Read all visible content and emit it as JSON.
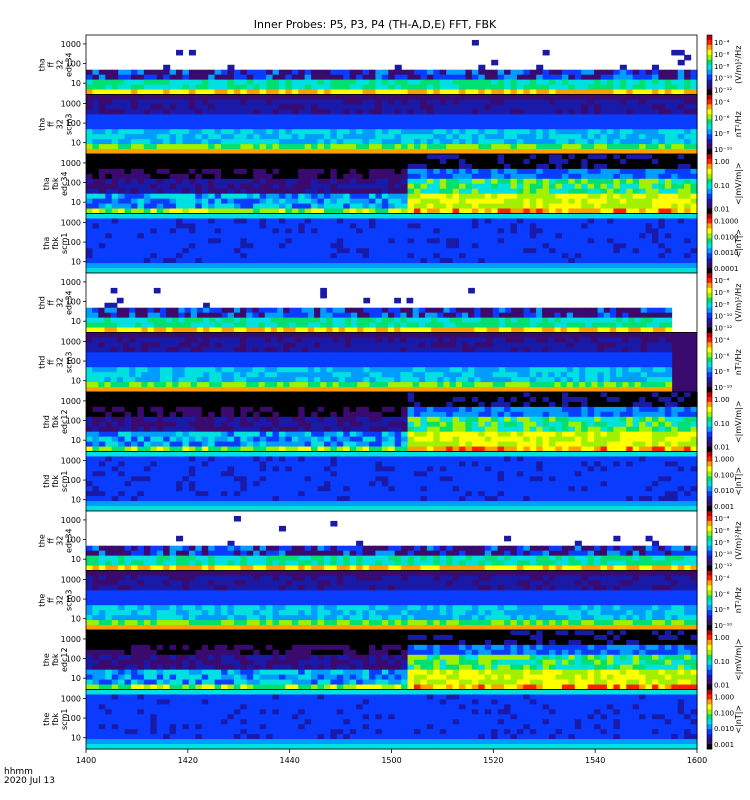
{
  "title": "Inner Probes: P5, P3, P4 (TH-A,D,E) FFT, FBK",
  "time_label": "hhmm",
  "date_label": "2020 Jul 13",
  "colors": {
    "palette": [
      "#000000",
      "#3a0a6e",
      "#1a1aa8",
      "#0a3cff",
      "#009cff",
      "#00e0e0",
      "#00e070",
      "#a0f000",
      "#ffff00",
      "#ffa000",
      "#ff2000",
      "#c00000"
    ]
  },
  "chart_data": {
    "type": "heatmap",
    "xlim": [
      1400,
      1600
    ],
    "x_ticks": [
      "1400",
      "1420",
      "1440",
      "1500",
      "1520",
      "1540",
      "1600"
    ],
    "y_ticks": [
      "1000",
      "100",
      "10"
    ],
    "panels": [
      {
        "id": "tha-ff32-edc34",
        "label": [
          "tha",
          "ff",
          "32",
          "edc34"
        ],
        "kind": "efield_spec",
        "cb_title": "(V/m)²/Hz",
        "cb_ticks": [
          "10⁻⁴",
          "10⁻⁶",
          "10⁻⁸",
          "10⁻¹⁰",
          "10⁻¹²"
        ]
      },
      {
        "id": "tha-ff32-scm3",
        "label": [
          "tha",
          "ff",
          "32",
          "scm3"
        ],
        "kind": "bfield_spec",
        "cb_title": "nT²/Hz",
        "cb_ticks": [
          "10⁻⁴",
          "10⁻⁶",
          "10⁻⁸",
          "10⁻¹⁰"
        ]
      },
      {
        "id": "tha-fbk-edc34",
        "label": [
          "tha",
          "fbk",
          "edc34"
        ],
        "kind": "efbk",
        "cb_title": "<|mV/m|>",
        "cb_ticks": [
          "1.00",
          "0.10",
          "0.01"
        ]
      },
      {
        "id": "tha-fbk-scm1",
        "label": [
          "tha",
          "fbk",
          "scm1"
        ],
        "kind": "bfbk",
        "cb_title": "<|nT|>",
        "cb_ticks": [
          "0.1000",
          "0.0100",
          "0.0010",
          "0.0001"
        ]
      },
      {
        "id": "thd-ff32-edc34",
        "label": [
          "thd",
          "ff",
          "32",
          "edc34"
        ],
        "kind": "efield_spec",
        "cb_title": "(V/m)²/Hz",
        "cb_ticks": [
          "10⁻⁴",
          "10⁻⁶",
          "10⁻⁸",
          "10⁻¹⁰",
          "10⁻¹²"
        ],
        "data_end": 1555
      },
      {
        "id": "thd-ff32-scm3",
        "label": [
          "thd",
          "ff",
          "32",
          "scm3"
        ],
        "kind": "bfield_spec",
        "cb_title": "nT²/Hz",
        "cb_ticks": [
          "10⁻⁴",
          "10⁻⁶",
          "10⁻⁸",
          "10⁻¹⁰"
        ],
        "data_end": 1555
      },
      {
        "id": "thd-fbk-edc12",
        "label": [
          "thd",
          "fbk",
          "edc12"
        ],
        "kind": "efbk",
        "cb_title": "<|mV/m|>",
        "cb_ticks": [
          "1.00",
          "0.10",
          "0.01"
        ]
      },
      {
        "id": "thd-fbk-scm1",
        "label": [
          "thd",
          "fbk",
          "scm1"
        ],
        "kind": "bfbk",
        "cb_title": "<|nT|>",
        "cb_ticks": [
          "1.000",
          "0.100",
          "0.010",
          "0.001"
        ]
      },
      {
        "id": "the-ff32-edc34",
        "label": [
          "the",
          "ff",
          "32",
          "edc34"
        ],
        "kind": "efield_spec",
        "cb_title": "(V/m)²/Hz",
        "cb_ticks": [
          "10⁻⁴",
          "10⁻⁶",
          "10⁻⁸",
          "10⁻¹⁰",
          "10⁻¹²"
        ]
      },
      {
        "id": "the-ff32-scm3",
        "label": [
          "the",
          "ff",
          "32",
          "scm3"
        ],
        "kind": "bfield_spec",
        "cb_title": "nT²/Hz",
        "cb_ticks": [
          "10⁻⁴",
          "10⁻⁶",
          "10⁻⁸",
          "10⁻¹⁰"
        ]
      },
      {
        "id": "the-fbk-edc12",
        "label": [
          "the",
          "fbk",
          "edc12"
        ],
        "kind": "efbk",
        "cb_title": "<|mV/m|>",
        "cb_ticks": [
          "1.00",
          "0.10",
          "0.01"
        ]
      },
      {
        "id": "the-fbk-scm1",
        "label": [
          "the",
          "fbk",
          "scm1"
        ],
        "kind": "bfbk",
        "cb_title": "<|nT|>",
        "cb_ticks": [
          "1.000",
          "0.100",
          "0.010",
          "0.001"
        ]
      }
    ]
  }
}
